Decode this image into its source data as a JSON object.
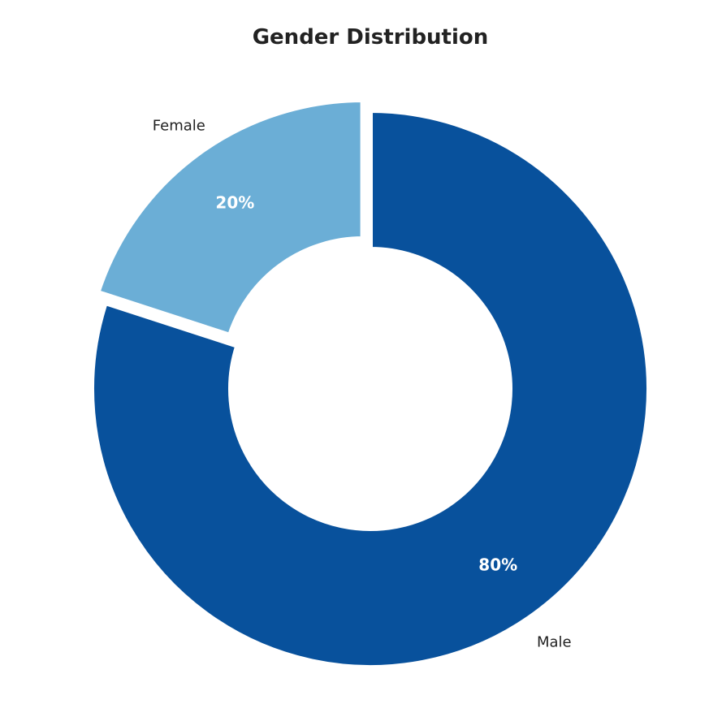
{
  "chart_data": {
    "type": "pie",
    "variant": "donut",
    "title": "Gender Distribution",
    "categories": [
      "Female",
      "Male"
    ],
    "values": [
      20,
      80
    ],
    "value_labels": [
      "20%",
      "80%"
    ],
    "colors": [
      "#6baed6",
      "#08519c"
    ],
    "exploded": [
      "Female"
    ],
    "legend": "none",
    "start_angle_deg": 90,
    "direction": "counterclockwise"
  },
  "colors": {
    "background": "#ffffff",
    "title": "#222222",
    "label": "#222222",
    "pct_label": "#ffffff"
  }
}
